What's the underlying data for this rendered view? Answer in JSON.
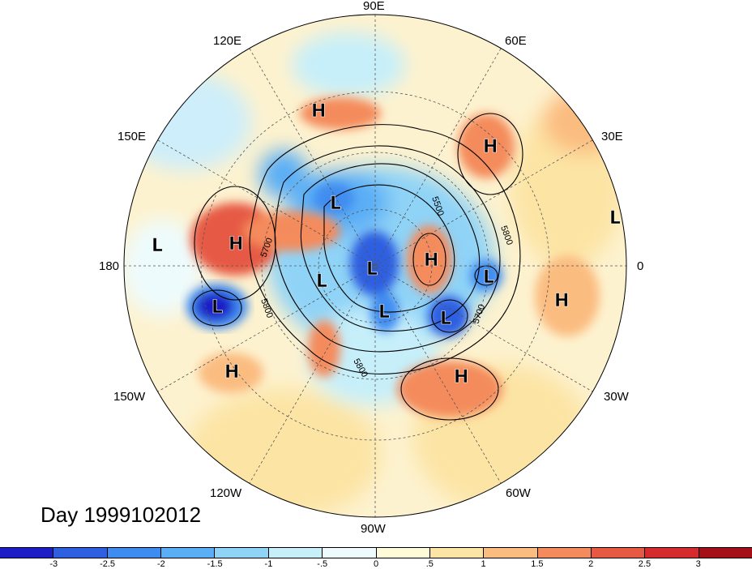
{
  "title": "Day 1999102012",
  "longitudes": {
    "top": "90E",
    "upper_left": "120E",
    "upper_right": "60E",
    "left_upper": "150E",
    "right_upper": "30E",
    "left": "180",
    "right": "0",
    "left_lower": "150W",
    "right_lower": "30W",
    "lower_left": "120W",
    "lower_right": "60W",
    "bottom": "90W"
  },
  "contour_labels": [
    "5500",
    "5600",
    "5700",
    "5800"
  ],
  "pressure_centers": [
    {
      "label": "H",
      "color": "#000000"
    },
    {
      "label": "H",
      "color": "#000000"
    },
    {
      "label": "H",
      "color": "#000000"
    },
    {
      "label": "H",
      "color": "#000000"
    },
    {
      "label": "H",
      "color": "#000000"
    },
    {
      "label": "H",
      "color": "#000000"
    },
    {
      "label": "L",
      "color": "#000000"
    },
    {
      "label": "L",
      "color": "#000000"
    },
    {
      "label": "L",
      "color": "#000000"
    },
    {
      "label": "L",
      "color": "#000000"
    },
    {
      "label": "L",
      "color": "#000000"
    },
    {
      "label": "L",
      "color": "#000000"
    },
    {
      "label": "L",
      "color": "#000000"
    },
    {
      "label": "L",
      "color": "#000000"
    },
    {
      "label": "L",
      "color": "#000000"
    }
  ],
  "colorbar": {
    "colors": [
      "#1d1dc8",
      "#2e5fe0",
      "#3f8cf0",
      "#5aaef5",
      "#8fd3f7",
      "#c6effa",
      "#eefbfd",
      "#fefbd9",
      "#fce4a4",
      "#fbbc80",
      "#f48b5c",
      "#e65a44",
      "#d52b2e",
      "#a50f18"
    ],
    "ticks": [
      "-3",
      "-2.5",
      "-2",
      "-1.5",
      "-1",
      "-.5",
      "0",
      ".5",
      "1",
      "1.5",
      "2",
      "2.5",
      "3"
    ]
  }
}
